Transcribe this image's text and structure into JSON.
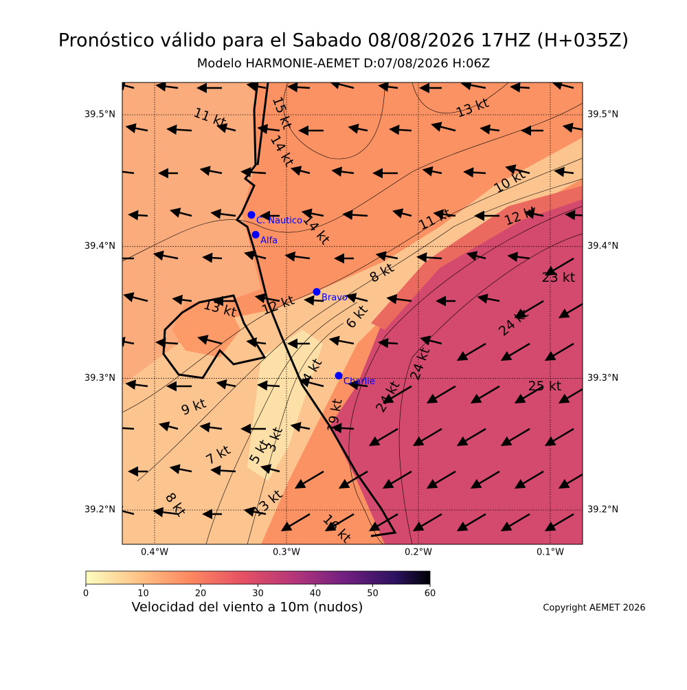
{
  "header": {
    "title": "Pronóstico válido para el Sabado 08/08/2026 17HZ (H+035Z)",
    "subtitle": "Modelo HARMONIE-AEMET D:07/08/2026 H:06Z"
  },
  "map": {
    "lonlim": [
      -0.4245,
      -0.0755
    ],
    "latlim": [
      39.174,
      39.5245
    ],
    "lon_ticks": [
      {
        "value": -0.4,
        "label": "0.4°W"
      },
      {
        "value": -0.3,
        "label": "0.3°W"
      },
      {
        "value": -0.2,
        "label": "0.2°W"
      },
      {
        "value": -0.1,
        "label": "0.1°W"
      }
    ],
    "lat_ticks": [
      {
        "value": 39.2,
        "label": "39.2°N"
      },
      {
        "value": 39.3,
        "label": "39.3°N"
      },
      {
        "value": 39.4,
        "label": "39.4°N"
      },
      {
        "value": 39.5,
        "label": "39.5°N"
      }
    ],
    "stations": [
      {
        "name": "C. Nautico",
        "lon": -0.3266,
        "lat": 39.424
      },
      {
        "name": "Alfa",
        "lon": -0.3234,
        "lat": 39.409
      },
      {
        "name": "Bravo",
        "lon": -0.2771,
        "lat": 39.3656
      },
      {
        "name": "Charlie",
        "lon": -0.2604,
        "lat": 39.302
      }
    ],
    "contour_labels": [
      {
        "label": "11 kt",
        "lon": -0.3583,
        "lat": 39.4975
      },
      {
        "label": "15 kt",
        "lon": -0.3036,
        "lat": 39.5012
      },
      {
        "label": "14 kt",
        "lon": -0.3036,
        "lat": 39.4725
      },
      {
        "label": "13 kt",
        "lon": -0.1589,
        "lat": 39.5049
      },
      {
        "label": "10 kt",
        "lon": -0.1307,
        "lat": 39.449
      },
      {
        "label": "11 kt",
        "lon": -0.1875,
        "lat": 39.4203
      },
      {
        "label": "12 kt",
        "lon": -0.1224,
        "lat": 39.423
      },
      {
        "label": "14 kt",
        "lon": -0.2776,
        "lat": 39.4125
      },
      {
        "label": "8 kt",
        "lon": -0.2276,
        "lat": 39.3797
      },
      {
        "label": "13 kt",
        "lon": -0.3505,
        "lat": 39.3525
      },
      {
        "label": "12 kt",
        "lon": -0.3063,
        "lat": 39.3551
      },
      {
        "label": "23 kt",
        "lon": -0.0938,
        "lat": 39.376
      },
      {
        "label": "24 kt",
        "lon": -0.1276,
        "lat": 39.3421
      },
      {
        "label": "25 kt",
        "lon": -0.1042,
        "lat": 39.2936
      },
      {
        "label": "24 kt",
        "lon": -0.1984,
        "lat": 39.3108
      },
      {
        "label": "9 kt",
        "lon": -0.3703,
        "lat": 39.2779
      },
      {
        "label": "24 kt",
        "lon": -0.2229,
        "lat": 39.2858
      },
      {
        "label": "19 kt",
        "lon": -0.263,
        "lat": 39.2717
      },
      {
        "label": "7 kt",
        "lon": -0.3516,
        "lat": 39.2414
      },
      {
        "label": "5 kt",
        "lon": -0.3203,
        "lat": 39.244
      },
      {
        "label": "3 kt",
        "lon": -0.3089,
        "lat": 39.2534
      },
      {
        "label": "8 kt",
        "lon": -0.3844,
        "lat": 39.2039
      },
      {
        "label": "13 kt",
        "lon": -0.3141,
        "lat": 39.2049
      },
      {
        "label": "16 kt",
        "lon": -0.262,
        "lat": 39.1856
      },
      {
        "label": "4 kt",
        "lon": -0.2802,
        "lat": 39.3056
      },
      {
        "label": "6 kt",
        "lon": -0.2464,
        "lat": 39.3463
      }
    ]
  },
  "colorbar": {
    "lim": [
      0,
      60
    ],
    "ticks": [
      0,
      10,
      20,
      30,
      40,
      50,
      60
    ],
    "label": "Velocidad del viento a 10m (nudos)"
  },
  "footer": {
    "copyright": "Copyright AEMET 2026"
  }
}
